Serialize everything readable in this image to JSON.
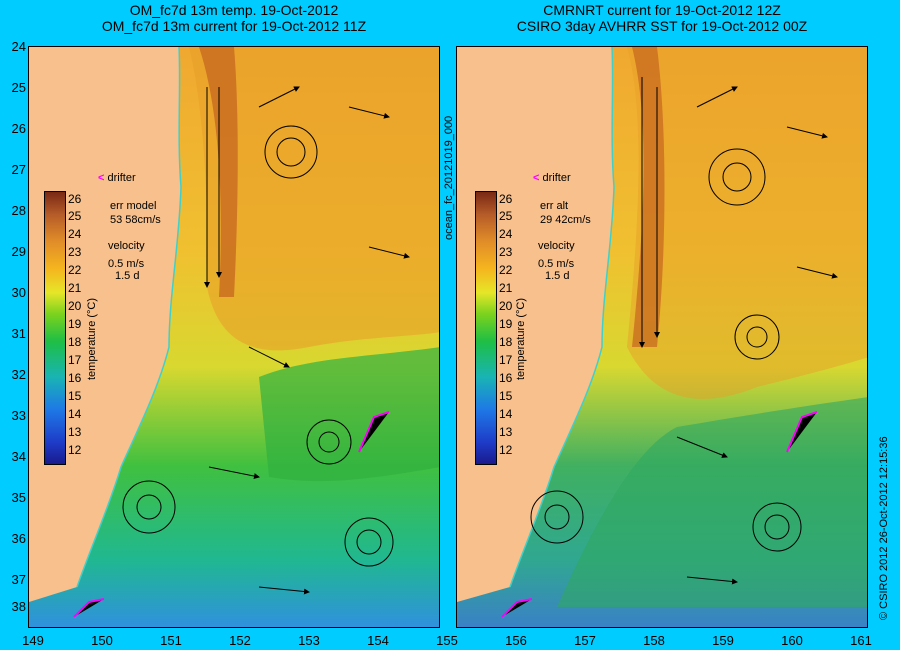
{
  "left_panel": {
    "title_line1": "OM_fc7d 13m temp. 19-Oct-2012",
    "title_line2": "OM_fc7d 13m current for 19-Oct-2012 11Z",
    "err_label": "err model",
    "err_value": "53 58cm/s",
    "velocity_label": "velocity",
    "velocity_scale": "0.5 m/s",
    "velocity_time": "1.5 d",
    "drifter_label": "drifter"
  },
  "right_panel": {
    "title_line1": "CMRNRT current for 19-Oct-2012 12Z",
    "title_line2": "CSIRO 3day AVHRR SST for 19-Oct-2012 00Z",
    "err_label": "err alt",
    "err_value": "29 42cm/s",
    "velocity_label": "velocity",
    "velocity_scale": "0.5 m/s",
    "velocity_time": "1.5 d",
    "drifter_label": "drifter"
  },
  "colorbar": {
    "label": "temperature (°C)",
    "ticks": [
      "26",
      "25",
      "24",
      "23",
      "22",
      "21",
      "20",
      "19",
      "18",
      "17",
      "16",
      "15",
      "14",
      "13",
      "12"
    ]
  },
  "y_axis": {
    "ticks": [
      "24",
      "25",
      "26",
      "27",
      "28",
      "29",
      "30",
      "31",
      "32",
      "33",
      "34",
      "35",
      "36",
      "37",
      "38"
    ]
  },
  "x_axis": {
    "ticks": [
      "149",
      "150",
      "151",
      "152",
      "153",
      "154",
      "155",
      "156",
      "157",
      "158",
      "159",
      "160",
      "161"
    ]
  },
  "side_labels": {
    "middle": "ocean_fc_20121019_000",
    "right": "© CSIRO 2012   26-Oct-2012 12:15:36"
  },
  "colors": {
    "background": "#00ccff",
    "land": "#f7c08c",
    "drifter": "#ff00ff",
    "coast": "#40d0c8"
  }
}
